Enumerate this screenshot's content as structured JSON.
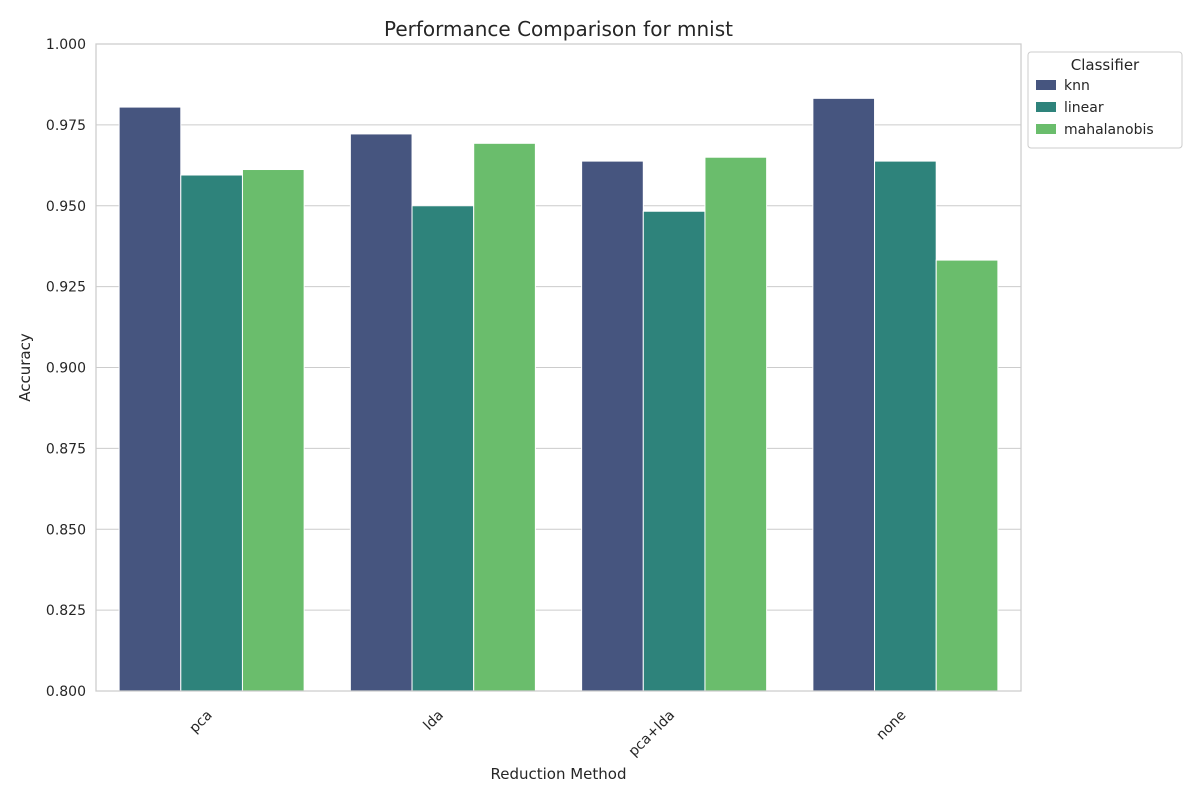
{
  "chart_data": {
    "type": "bar",
    "title": "Performance Comparison for mnist",
    "xlabel": "Reduction Method",
    "ylabel": "Accuracy",
    "categories": [
      "pca",
      "lda",
      "pca+lda",
      "none"
    ],
    "ylim": [
      0.8,
      1.0
    ],
    "yticks": [
      "0.800",
      "0.825",
      "0.850",
      "0.875",
      "0.900",
      "0.925",
      "0.950",
      "0.975",
      "1.000"
    ],
    "grid": true,
    "legend": {
      "title": "Classifier",
      "placement": "outside top-right"
    },
    "series": [
      {
        "name": "knn",
        "color": "#46557f",
        "values": [
          0.9805,
          0.9722,
          0.9638,
          0.9832
        ]
      },
      {
        "name": "linear",
        "color": "#2e837b",
        "values": [
          0.9595,
          0.95,
          0.9483,
          0.9638
        ]
      },
      {
        "name": "mahalanobis",
        "color": "#6abd6c",
        "values": [
          0.9612,
          0.9693,
          0.965,
          0.9332
        ]
      }
    ]
  }
}
